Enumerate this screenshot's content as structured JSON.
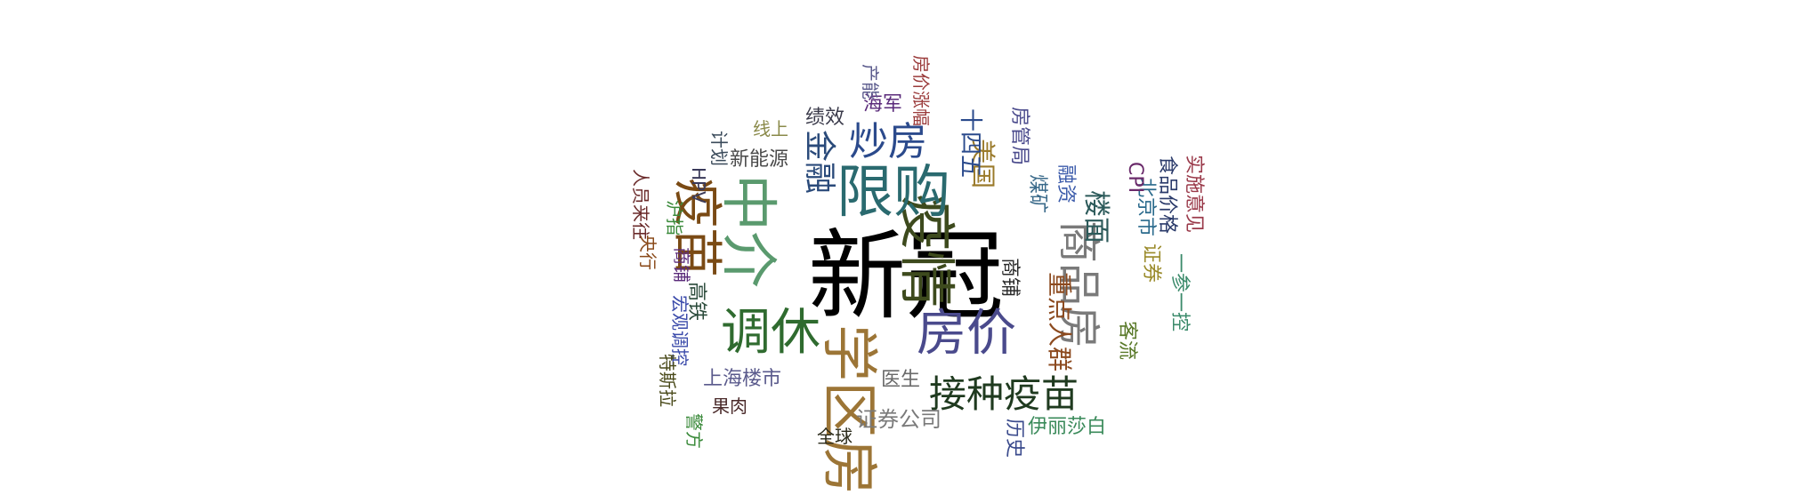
{
  "chart_data": {
    "type": "wordcloud",
    "words": [
      {
        "text": "新冠",
        "color": "#000000",
        "orientation": "horizontal"
      },
      {
        "text": "疫情",
        "color": "#3d4a1d",
        "orientation": "rotated"
      },
      {
        "text": "限购",
        "color": "#2a6a6f",
        "orientation": "horizontal"
      },
      {
        "text": "中介",
        "color": "#5a9a6e",
        "orientation": "rotated"
      },
      {
        "text": "疫苗",
        "color": "#7a4a14",
        "orientation": "rotated"
      },
      {
        "text": "学区房",
        "color": "#9c7536",
        "orientation": "rotated"
      },
      {
        "text": "房价",
        "color": "#4a4a8c",
        "orientation": "horizontal"
      },
      {
        "text": "调休",
        "color": "#2f6b2f",
        "orientation": "horizontal"
      },
      {
        "text": "商品房",
        "color": "#7a7a7a",
        "orientation": "rotated"
      },
      {
        "text": "接种疫苗",
        "color": "#1f3a1f",
        "orientation": "horizontal"
      },
      {
        "text": "炒房",
        "color": "#2b4a8c",
        "orientation": "horizontal"
      },
      {
        "text": "金融",
        "color": "#2a4a7a",
        "orientation": "rotated"
      },
      {
        "text": "楼面",
        "color": "#2c5a5a",
        "orientation": "rotated"
      },
      {
        "text": "重点人群",
        "color": "#8c4a1f",
        "orientation": "rotated"
      },
      {
        "text": "美国",
        "color": "#9a7a2a",
        "orientation": "rotated"
      },
      {
        "text": "十四五",
        "color": "#2a4a8c",
        "orientation": "rotated"
      },
      {
        "text": "上海楼市",
        "color": "#5a5a8c",
        "orientation": "horizontal"
      },
      {
        "text": "证券公司",
        "color": "#7a7a7a",
        "orientation": "horizontal"
      },
      {
        "text": "新能源",
        "color": "#4a4a4a",
        "orientation": "horizontal"
      },
      {
        "text": "医生",
        "color": "#6a6a6a",
        "orientation": "horizontal"
      },
      {
        "text": "伊丽莎白",
        "color": "#3a8a5a",
        "orientation": "horizontal"
      },
      {
        "text": "客流",
        "color": "#5a7a2a",
        "orientation": "rotated"
      },
      {
        "text": "北京市",
        "color": "#2a6a8c",
        "orientation": "rotated"
      },
      {
        "text": "食品价格",
        "color": "#2a3a6a",
        "orientation": "rotated"
      },
      {
        "text": "实施意见",
        "color": "#9a3a4a",
        "orientation": "rotated"
      },
      {
        "text": "一参一控",
        "color": "#3a8a6a",
        "orientation": "rotated"
      },
      {
        "text": "证券",
        "color": "#9a8a2a",
        "orientation": "rotated"
      },
      {
        "text": "CPI",
        "color": "#6a2a6a",
        "orientation": "rotated"
      },
      {
        "text": "融资",
        "color": "#3a5aaa",
        "orientation": "rotated"
      },
      {
        "text": "煤矿",
        "color": "#3a6a8a",
        "orientation": "rotated"
      },
      {
        "text": "房管局",
        "color": "#4a4a8c",
        "orientation": "rotated"
      },
      {
        "text": "商铺",
        "color": "#2a2a2a",
        "orientation": "rotated"
      },
      {
        "text": "商铺",
        "color": "#5a2a7a",
        "orientation": "rotated"
      },
      {
        "text": "高铁",
        "color": "#2a4a3a",
        "orientation": "rotated"
      },
      {
        "text": "宏观调控",
        "color": "#3a4aaa",
        "orientation": "rotated"
      },
      {
        "text": "特斯拉",
        "color": "#4a4a1a",
        "orientation": "rotated"
      },
      {
        "text": "警方",
        "color": "#3a8a3a",
        "orientation": "rotated"
      },
      {
        "text": "果肉",
        "color": "#4a2a2a",
        "orientation": "horizontal"
      },
      {
        "text": "全球",
        "color": "#2a2a1a",
        "orientation": "horizontal"
      },
      {
        "text": "历史",
        "color": "#3a4a8c",
        "orientation": "rotated"
      },
      {
        "text": "央行",
        "color": "#8a4a1a",
        "orientation": "rotated"
      },
      {
        "text": "人员来往",
        "color": "#6a2a2a",
        "orientation": "rotated"
      },
      {
        "text": "沪指",
        "color": "#3a8a3a",
        "orientation": "rotated"
      },
      {
        "text": "HPV",
        "color": "#3a3a5a",
        "orientation": "rotated"
      },
      {
        "text": "计划",
        "color": "#3a4a5a",
        "orientation": "rotated"
      },
      {
        "text": "线上",
        "color": "#8a8a4a",
        "orientation": "horizontal"
      },
      {
        "text": "绩效",
        "color": "#3a3a4a",
        "orientation": "horizontal"
      },
      {
        "text": "海军",
        "color": "#5a2a7a",
        "orientation": "horizontal"
      },
      {
        "text": "产能",
        "color": "#5a5a8c",
        "orientation": "rotated"
      },
      {
        "text": "房价涨幅",
        "color": "#9a3a3a",
        "orientation": "rotated"
      }
    ]
  }
}
